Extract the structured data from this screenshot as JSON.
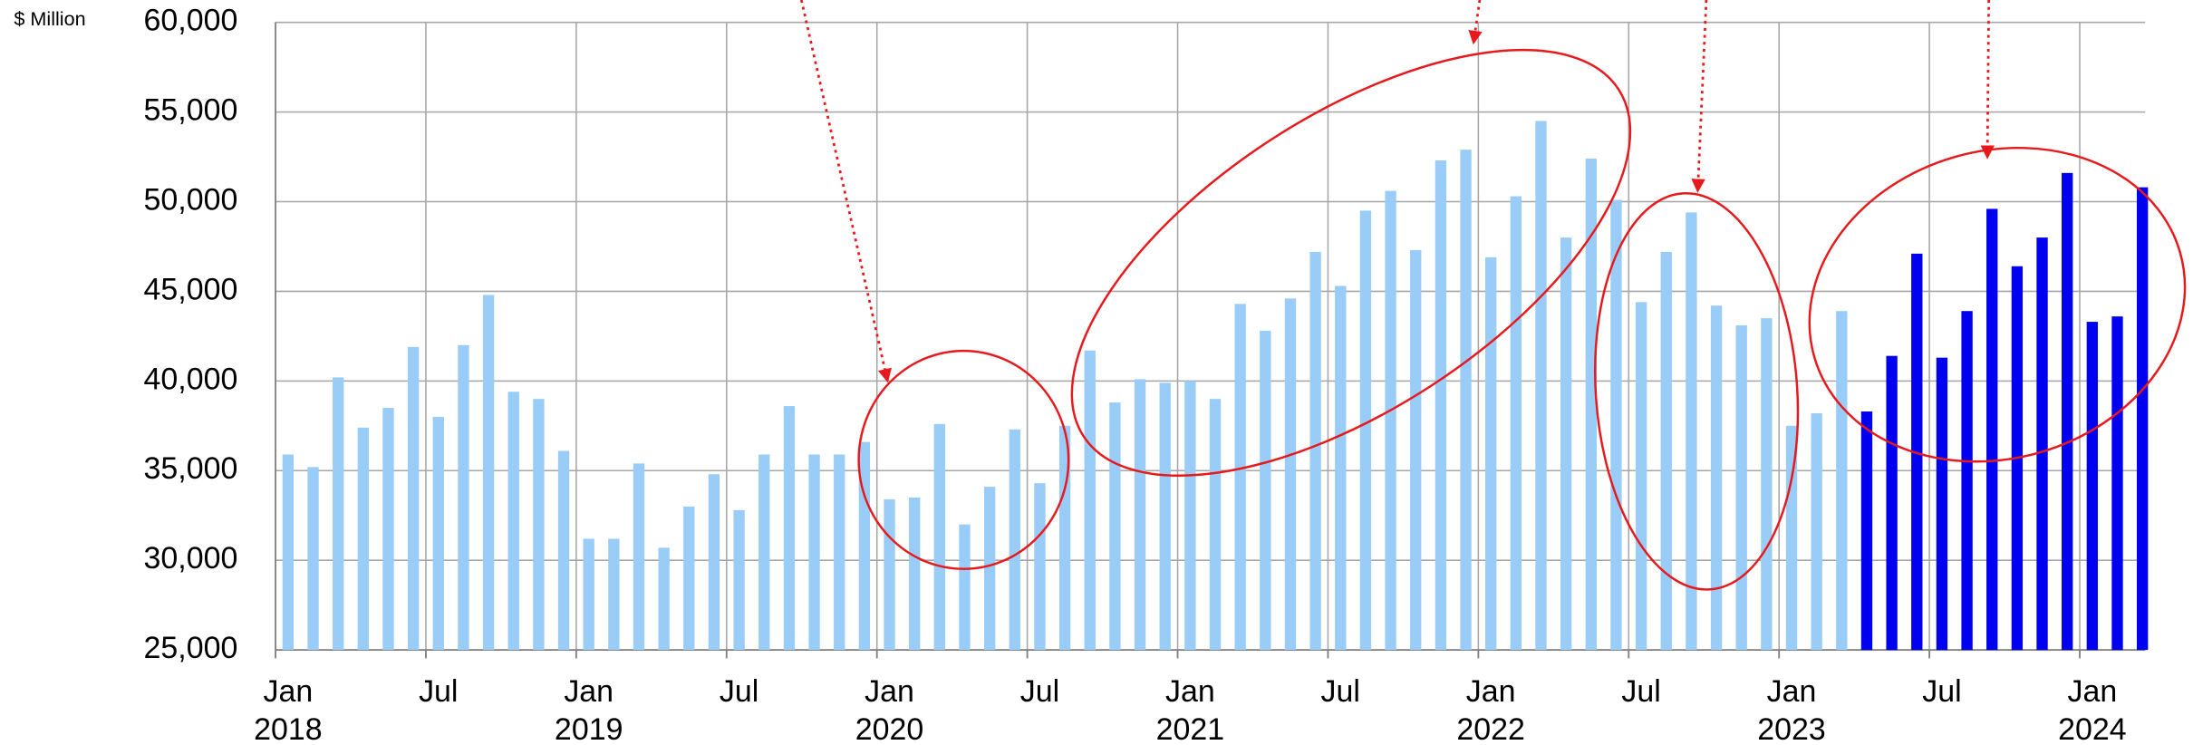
{
  "chart_data": {
    "type": "bar",
    "y_label": "$ Million",
    "categories": [
      [
        "Jan",
        "2018"
      ],
      null,
      null,
      null,
      null,
      null,
      [
        "Jul"
      ],
      null,
      null,
      null,
      null,
      null,
      [
        "Jan",
        "2019"
      ],
      null,
      null,
      null,
      null,
      null,
      [
        "Jul"
      ],
      null,
      null,
      null,
      null,
      null,
      [
        "Jan",
        "2020"
      ],
      null,
      null,
      null,
      null,
      null,
      [
        "Jul"
      ],
      null,
      null,
      null,
      null,
      null,
      [
        "Jan",
        "2021"
      ],
      null,
      null,
      null,
      null,
      null,
      [
        "Jul"
      ],
      null,
      null,
      null,
      null,
      null,
      [
        "Jan",
        "2022"
      ],
      null,
      null,
      null,
      null,
      null,
      [
        "Jul"
      ],
      null,
      null,
      null,
      null,
      null,
      [
        "Jan",
        "2023"
      ],
      null,
      null,
      null,
      null,
      null,
      [
        "Jul"
      ],
      null,
      null,
      null,
      null,
      null,
      [
        "Jan",
        "2024"
      ],
      null,
      null
    ],
    "series": [
      {
        "color": "#99cdf7",
        "values": [
          35900,
          35200,
          40200,
          37400,
          38500,
          41900,
          38000,
          42000,
          44800,
          39400,
          39000,
          36100,
          31200,
          31200,
          35400,
          30700,
          33000,
          34800,
          32800,
          35900,
          38600,
          35900,
          35900,
          36600,
          33400,
          33500,
          37600,
          32000,
          34100,
          37300,
          34300,
          37500,
          41700,
          38800,
          40100,
          39900,
          40000,
          39000,
          44300,
          42800,
          44600,
          47200,
          45300,
          49500,
          50600,
          47300,
          52300,
          52900,
          46900,
          50300,
          54500,
          48000,
          52400,
          50100,
          44400,
          47200,
          49400,
          44200,
          43100,
          43500,
          37500,
          38200,
          43900,
          null,
          null,
          null,
          null,
          null,
          null,
          null,
          null,
          null,
          null,
          null,
          null
        ]
      },
      {
        "color": "#0000f0",
        "values": [
          null,
          null,
          null,
          null,
          null,
          null,
          null,
          null,
          null,
          null,
          null,
          null,
          null,
          null,
          null,
          null,
          null,
          null,
          null,
          null,
          null,
          null,
          null,
          null,
          null,
          null,
          null,
          null,
          null,
          null,
          null,
          null,
          null,
          null,
          null,
          null,
          null,
          null,
          null,
          null,
          null,
          null,
          null,
          null,
          null,
          null,
          null,
          null,
          null,
          null,
          null,
          null,
          null,
          null,
          null,
          null,
          null,
          null,
          null,
          null,
          null,
          null,
          null,
          38300,
          41400,
          47100,
          41300,
          43900,
          49600,
          46400,
          48000,
          51600,
          43300,
          43600,
          50800
        ]
      }
    ],
    "ylim": [
      25000,
      60000
    ],
    "yticks": [
      {
        "value": 25000,
        "label": "25,000"
      },
      {
        "value": 30000,
        "label": "30,000"
      },
      {
        "value": 35000,
        "label": "35,000"
      },
      {
        "value": 40000,
        "label": "40,000"
      },
      {
        "value": 45000,
        "label": "45,000"
      },
      {
        "value": 50000,
        "label": "50,000"
      },
      {
        "value": 55000,
        "label": "55,000"
      },
      {
        "value": 60000,
        "label": "60,000"
      }
    ],
    "grid": true
  }
}
